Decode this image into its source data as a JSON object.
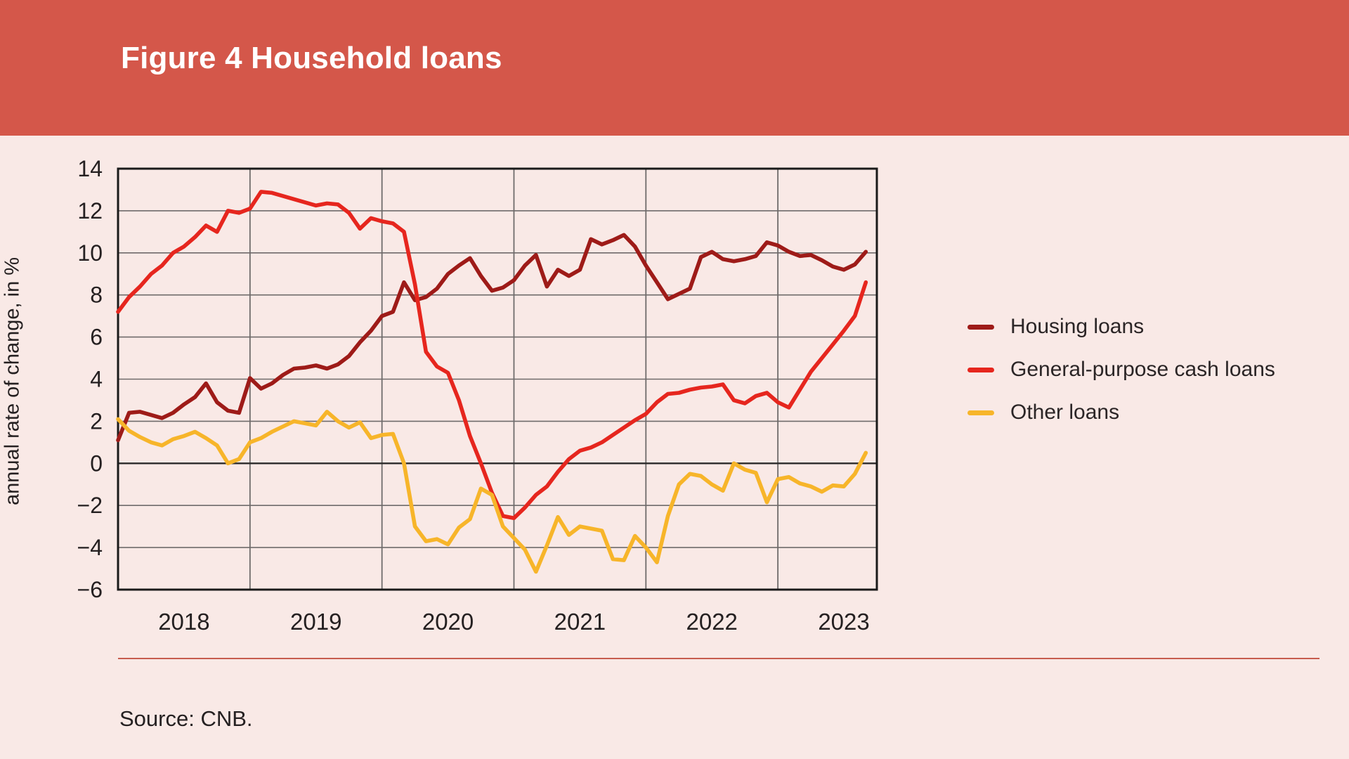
{
  "title": "Figure 4 Household loans",
  "source_note": "Source: CNB.",
  "colors": {
    "banner": "#d4574a",
    "page_background": "#f9e9e6",
    "gridline": "#6f6b6b",
    "axis_border": "#1a1a1a",
    "zero_line": "#2b2b2b",
    "text": "#252021",
    "separator_line": "#c75c4e",
    "title_text": "#ffffff"
  },
  "chart_data": {
    "type": "line",
    "title": "Figure 4 Household loans",
    "ylabel": "annual rate of change, in %",
    "ylim": [
      -6,
      14
    ],
    "ytick_step": 2,
    "ytick_labels": [
      "14",
      "12",
      "10",
      "8",
      "6",
      "4",
      "2",
      "0",
      "−2",
      "−4",
      "−6"
    ],
    "xtick_labels": [
      "2018",
      "2019",
      "2020",
      "2021",
      "2022",
      "2023"
    ],
    "x_frequency": "monthly",
    "x_range": "Jan 2018 - Sep 2023",
    "grid": true,
    "legend_position": "right-of-chart",
    "series": [
      {
        "name": "Housing loans",
        "color": "#9e1b18",
        "values": [
          1.1,
          2.4,
          2.45,
          2.3,
          2.15,
          2.4,
          2.8,
          3.15,
          3.8,
          2.9,
          2.5,
          2.4,
          4.05,
          3.55,
          3.8,
          4.2,
          4.5,
          4.55,
          4.65,
          4.5,
          4.7,
          5.1,
          5.75,
          6.3,
          7.0,
          7.2,
          8.6,
          7.75,
          7.9,
          8.3,
          9.0,
          9.4,
          9.75,
          8.9,
          8.2,
          8.35,
          8.7,
          9.4,
          9.9,
          8.4,
          9.2,
          8.9,
          9.2,
          10.65,
          10.4,
          10.6,
          10.85,
          10.3,
          9.4,
          8.6,
          7.8,
          8.05,
          8.3,
          9.8,
          10.05,
          9.7,
          9.6,
          9.7,
          9.85,
          10.5,
          10.35,
          10.05,
          9.85,
          9.9,
          9.65,
          9.35,
          9.2,
          9.45,
          10.05
        ]
      },
      {
        "name": "General-purpose cash loans",
        "color": "#e6261e",
        "values": [
          7.2,
          7.9,
          8.4,
          9.0,
          9.4,
          10.0,
          10.3,
          10.75,
          11.3,
          11.0,
          12.0,
          11.9,
          12.1,
          12.9,
          12.85,
          12.7,
          12.55,
          12.4,
          12.25,
          12.35,
          12.3,
          11.9,
          11.15,
          11.65,
          11.5,
          11.4,
          11.0,
          8.5,
          5.3,
          4.6,
          4.3,
          3.0,
          1.3,
          0.0,
          -1.4,
          -2.5,
          -2.6,
          -2.1,
          -1.5,
          -1.1,
          -0.4,
          0.2,
          0.6,
          0.75,
          1.0,
          1.35,
          1.7,
          2.05,
          2.35,
          2.9,
          3.3,
          3.35,
          3.5,
          3.6,
          3.65,
          3.75,
          3.0,
          2.85,
          3.2,
          3.35,
          2.9,
          2.65,
          3.5,
          4.35,
          5.0,
          5.65,
          6.3,
          7.0,
          8.6
        ]
      },
      {
        "name": "Other loans",
        "color": "#f7b52a",
        "values": [
          2.1,
          1.55,
          1.25,
          1.0,
          0.85,
          1.15,
          1.3,
          1.5,
          1.2,
          0.85,
          0.0,
          0.2,
          1.0,
          1.2,
          1.5,
          1.75,
          2.0,
          1.9,
          1.8,
          2.45,
          2.0,
          1.7,
          1.95,
          1.2,
          1.35,
          1.4,
          0.0,
          -3.0,
          -3.7,
          -3.6,
          -3.85,
          -3.05,
          -2.65,
          -1.2,
          -1.5,
          -3.0,
          -3.55,
          -4.1,
          -5.15,
          -3.9,
          -2.55,
          -3.4,
          -3.0,
          -3.1,
          -3.2,
          -4.55,
          -4.6,
          -3.45,
          -4.0,
          -4.7,
          -2.5,
          -1.0,
          -0.5,
          -0.6,
          -1.0,
          -1.3,
          0.0,
          -0.3,
          -0.45,
          -1.85,
          -0.75,
          -0.65,
          -0.95,
          -1.1,
          -1.35,
          -1.05,
          -1.1,
          -0.5,
          0.5
        ]
      }
    ]
  }
}
